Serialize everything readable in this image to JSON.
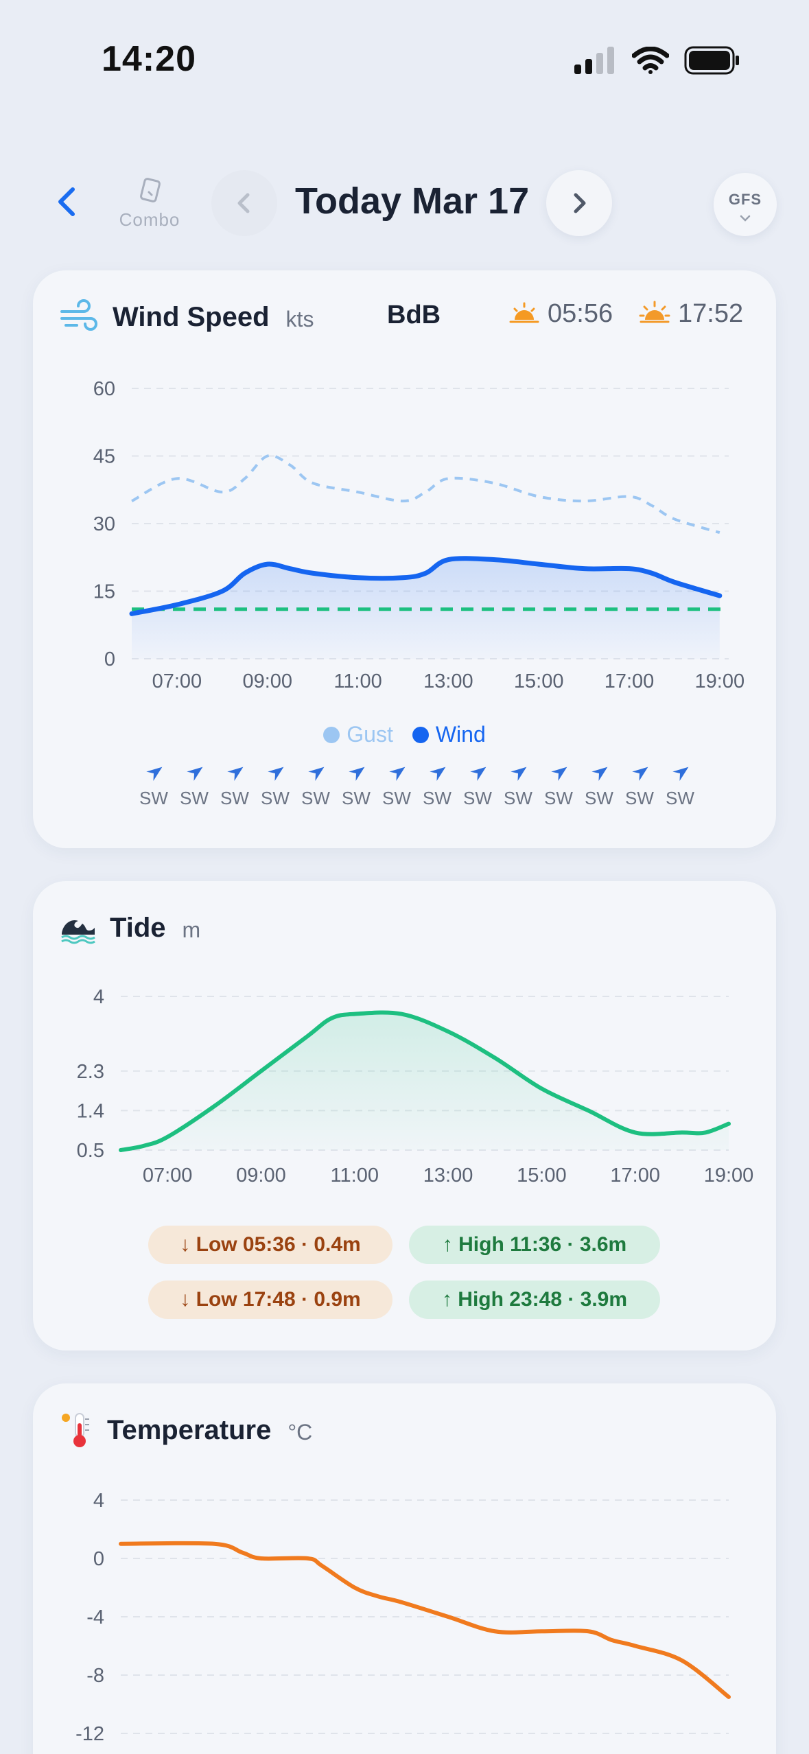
{
  "status": {
    "time": "14:20"
  },
  "nav": {
    "combo_label": "Combo",
    "title": "Today Mar 17",
    "model_label": "GFS"
  },
  "wind": {
    "title": "Wind Speed",
    "unit": "kts",
    "station": "BdB",
    "sunrise": "05:56",
    "sunset": "17:52",
    "legend": {
      "gust": "Gust",
      "wind": "Wind"
    },
    "directions": [
      "SW",
      "SW",
      "SW",
      "SW",
      "SW",
      "SW",
      "SW",
      "SW",
      "SW",
      "SW",
      "SW",
      "SW",
      "SW",
      "SW"
    ],
    "colors": {
      "wind": "#1565f0",
      "gust": "#9cc6f2",
      "threshold": "#1dbf80"
    }
  },
  "tide": {
    "title": "Tide",
    "unit": "m",
    "extremes": [
      {
        "label": "↓ Low 05:36 · 0.4m",
        "kind": "low"
      },
      {
        "label": "↑ High 11:36 · 3.6m",
        "kind": "high"
      },
      {
        "label": "↓ Low 17:48 · 0.9m",
        "kind": "low"
      },
      {
        "label": "↑ High 23:48 · 3.9m",
        "kind": "high"
      }
    ],
    "color": "#1dbf80"
  },
  "temperature": {
    "title": "Temperature",
    "unit": "°C",
    "color": "#f07a1e"
  },
  "chart_data": [
    {
      "type": "line",
      "x": [
        6,
        7,
        8,
        8.5,
        9,
        9.5,
        10,
        11,
        12,
        12.5,
        13,
        14,
        15,
        16,
        17,
        17.5,
        18,
        19
      ],
      "xticks": [
        "07:00",
        "09:00",
        "11:00",
        "13:00",
        "15:00",
        "17:00",
        "19:00"
      ],
      "xtick_values": [
        7,
        9,
        11,
        13,
        15,
        17,
        19
      ],
      "yticks": [
        0,
        15,
        30,
        45,
        60
      ],
      "ylim": [
        0,
        60
      ],
      "xlim": [
        6,
        19.2
      ],
      "series": [
        {
          "name": "Gust",
          "style": "dashed",
          "values": [
            35,
            40,
            37,
            40,
            45,
            43,
            39,
            37,
            35,
            37,
            40,
            39,
            36,
            35,
            36,
            34,
            31,
            28
          ]
        },
        {
          "name": "Wind",
          "style": "solid",
          "values": [
            10,
            12,
            15,
            19,
            21,
            20,
            19,
            18,
            18,
            19,
            22,
            22,
            21,
            20,
            20,
            19,
            17,
            14
          ]
        }
      ],
      "threshold": 11,
      "grid": true
    },
    {
      "type": "area",
      "x": [
        6,
        6.5,
        7,
        8,
        9,
        10,
        10.5,
        11,
        12,
        13,
        14,
        15,
        16,
        17,
        18,
        18.5,
        19
      ],
      "values": [
        0.5,
        0.6,
        0.8,
        1.5,
        2.3,
        3.1,
        3.5,
        3.6,
        3.6,
        3.2,
        2.6,
        1.9,
        1.4,
        0.9,
        0.9,
        0.9,
        1.1
      ],
      "xticks": [
        "07:00",
        "09:00",
        "11:00",
        "13:00",
        "15:00",
        "17:00",
        "19:00"
      ],
      "xtick_values": [
        7,
        9,
        11,
        13,
        15,
        17,
        19
      ],
      "yticks": [
        0.5,
        1.4,
        2.3,
        4
      ],
      "ylim": [
        0.5,
        4
      ],
      "xlim": [
        6,
        19
      ]
    },
    {
      "type": "line",
      "x": [
        6,
        8,
        8.6,
        9,
        10,
        10.3,
        11,
        11.5,
        12,
        13,
        14,
        15,
        16,
        16.5,
        17,
        18,
        19
      ],
      "values": [
        1,
        1,
        0.4,
        0,
        0,
        -0.5,
        -2,
        -2.6,
        -3,
        -4,
        -5,
        -5,
        -5,
        -5.6,
        -6,
        -7,
        -9.5
      ],
      "yticks": [
        4,
        0,
        -4,
        -8,
        -12
      ],
      "ylim": [
        -12,
        4
      ]
    }
  ]
}
